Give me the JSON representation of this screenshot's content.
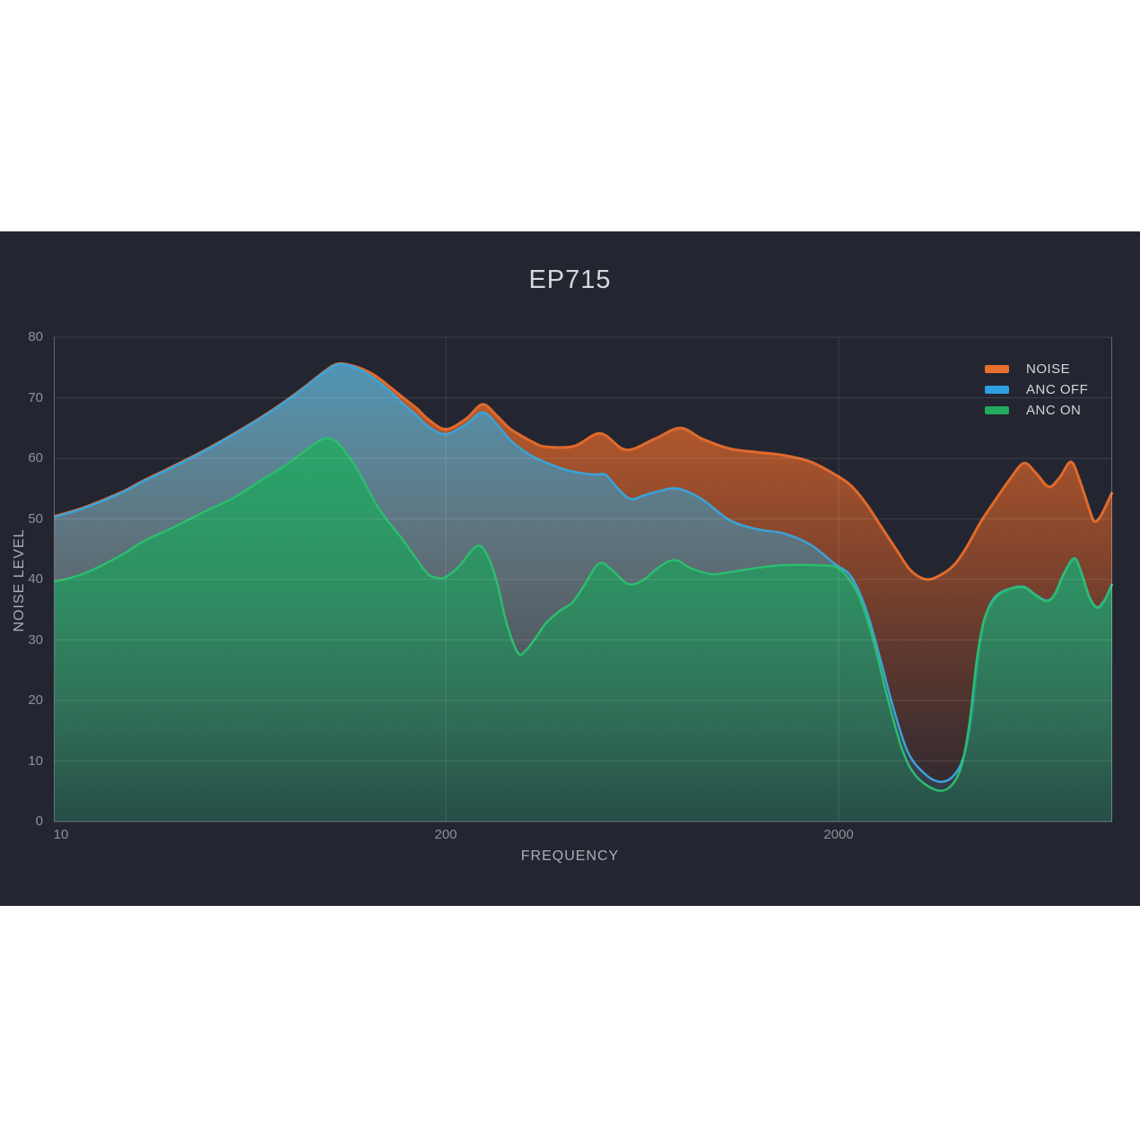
{
  "title": "EP715",
  "colors": {
    "page_bg": "#ffffff",
    "panel_bg": "#232631",
    "grid": "rgba(255,255,255,0.12)",
    "axis_border": "rgba(255,255,255,0.30)",
    "tick_text": "#8d9199",
    "axis_label_text": "#a9adb4",
    "title_text": "#d6d8dc",
    "legend_text": "#d2d4d9"
  },
  "chart_data": {
    "type": "area",
    "title": "EP715",
    "xlabel": "FREQUENCY",
    "ylabel": "NOISE LEVEL",
    "x_scale": "log",
    "x_ticks": [
      10,
      200,
      2000
    ],
    "x_range": [
      9.5,
      10000
    ],
    "y_ticks": [
      0,
      10,
      20,
      30,
      40,
      50,
      60,
      70,
      80
    ],
    "ylim": [
      0,
      80
    ],
    "grid": true,
    "legend_position": "top-right",
    "series": [
      {
        "name": "NOISE",
        "stroke": "#e06a2c",
        "legend_color": "#e8702e",
        "gradient": {
          "top": "rgba(227,108,44,0.92)",
          "mid": "rgba(195,88,40,0.55)",
          "bottom": "rgba(160,75,45,0.05)"
        },
        "points": [
          [
            9.5,
            50.4
          ],
          [
            12,
            51.9
          ],
          [
            16,
            54.4
          ],
          [
            19,
            56.3
          ],
          [
            24,
            58.7
          ],
          [
            30,
            61.1
          ],
          [
            38,
            63.9
          ],
          [
            48,
            66.9
          ],
          [
            58,
            69.6
          ],
          [
            68,
            72.1
          ],
          [
            78,
            74.4
          ],
          [
            86,
            75.6
          ],
          [
            95,
            75.4
          ],
          [
            105,
            74.7
          ],
          [
            116,
            73.6
          ],
          [
            128,
            72.0
          ],
          [
            142,
            70.2
          ],
          [
            160,
            68.2
          ],
          [
            175,
            66.4
          ],
          [
            200,
            64.8
          ],
          [
            225,
            66.5
          ],
          [
            248,
            68.9
          ],
          [
            270,
            67.0
          ],
          [
            290,
            65.0
          ],
          [
            310,
            63.8
          ],
          [
            335,
            62.6
          ],
          [
            360,
            61.9
          ],
          [
            424,
            62.0
          ],
          [
            495,
            64.1
          ],
          [
            575,
            61.4
          ],
          [
            680,
            63.2
          ],
          [
            790,
            65.0
          ],
          [
            900,
            63.2
          ],
          [
            1055,
            61.6
          ],
          [
            1240,
            61.0
          ],
          [
            1450,
            60.5
          ],
          [
            1700,
            59.4
          ],
          [
            1960,
            57.3
          ],
          [
            2150,
            55.5
          ],
          [
            2350,
            52.5
          ],
          [
            2550,
            49.0
          ],
          [
            2800,
            45.0
          ],
          [
            3050,
            41.5
          ],
          [
            3340,
            40.0
          ],
          [
            3650,
            40.8
          ],
          [
            3950,
            42.5
          ],
          [
            4250,
            45.5
          ],
          [
            4600,
            49.5
          ],
          [
            5000,
            53.0
          ],
          [
            5450,
            56.5
          ],
          [
            5920,
            59.2
          ],
          [
            6350,
            57.6
          ],
          [
            6850,
            55.3
          ],
          [
            7300,
            56.8
          ],
          [
            7800,
            59.4
          ],
          [
            8200,
            56.5
          ],
          [
            8700,
            51.5
          ],
          [
            8950,
            49.6
          ],
          [
            9300,
            50.5
          ],
          [
            9940,
            54.4
          ]
        ]
      },
      {
        "name": "ANC OFF",
        "stroke": "#38a3da",
        "legend_color": "#2e9fe0",
        "gradient": {
          "top": "rgba(58,158,205,0.90)",
          "mid": "rgba(58,150,190,0.48)",
          "bottom": "rgba(56,140,180,0.12)"
        },
        "points": [
          [
            9.5,
            50.3
          ],
          [
            12,
            51.8
          ],
          [
            16,
            54.3
          ],
          [
            19,
            56.2
          ],
          [
            24,
            58.6
          ],
          [
            30,
            61.0
          ],
          [
            38,
            63.8
          ],
          [
            48,
            66.8
          ],
          [
            58,
            69.5
          ],
          [
            68,
            72.0
          ],
          [
            78,
            74.3
          ],
          [
            86,
            75.5
          ],
          [
            95,
            75.3
          ],
          [
            105,
            74.4
          ],
          [
            116,
            73.0
          ],
          [
            128,
            71.3
          ],
          [
            142,
            69.2
          ],
          [
            160,
            67.0
          ],
          [
            175,
            65.2
          ],
          [
            200,
            64.0
          ],
          [
            225,
            65.6
          ],
          [
            248,
            67.6
          ],
          [
            270,
            65.6
          ],
          [
            290,
            63.2
          ],
          [
            310,
            61.6
          ],
          [
            335,
            60.2
          ],
          [
            360,
            59.3
          ],
          [
            400,
            58.2
          ],
          [
            440,
            57.6
          ],
          [
            480,
            57.3
          ],
          [
            510,
            57.3
          ],
          [
            545,
            55.2
          ],
          [
            590,
            53.3
          ],
          [
            640,
            53.9
          ],
          [
            700,
            54.6
          ],
          [
            780,
            55.0
          ],
          [
            900,
            53.2
          ],
          [
            1055,
            49.8
          ],
          [
            1240,
            48.3
          ],
          [
            1450,
            47.6
          ],
          [
            1700,
            45.7
          ],
          [
            1960,
            42.5
          ],
          [
            2150,
            40.5
          ],
          [
            2350,
            35.0
          ],
          [
            2550,
            27.0
          ],
          [
            2750,
            19.0
          ],
          [
            3000,
            11.5
          ],
          [
            3300,
            8.0
          ],
          [
            3600,
            6.6
          ],
          [
            3900,
            7.4
          ],
          [
            4150,
            10.5
          ],
          [
            4350,
            17.0
          ],
          [
            4550,
            28.0
          ],
          [
            4750,
            34.2
          ],
          [
            5000,
            37.1
          ],
          [
            5400,
            38.4
          ],
          [
            5920,
            38.8
          ],
          [
            6300,
            37.6
          ],
          [
            6760,
            36.5
          ],
          [
            7100,
            37.6
          ],
          [
            7500,
            41.1
          ],
          [
            7960,
            43.5
          ],
          [
            8300,
            41.1
          ],
          [
            8700,
            37.1
          ],
          [
            9100,
            35.4
          ],
          [
            9500,
            36.6
          ],
          [
            9940,
            39.3
          ]
        ]
      },
      {
        "name": "ANC ON",
        "stroke": "#2bbd6e",
        "legend_color": "#22ab5e",
        "gradient": {
          "top": "rgba(40,178,104,0.95)",
          "mid": "rgba(33,155,94,0.78)",
          "bottom": "rgba(26,125,82,0.35)"
        },
        "points": [
          [
            9.5,
            39.6
          ],
          [
            12,
            41.0
          ],
          [
            16,
            44.0
          ],
          [
            19,
            46.3
          ],
          [
            24,
            48.6
          ],
          [
            30,
            51.0
          ],
          [
            38,
            53.4
          ],
          [
            48,
            56.5
          ],
          [
            58,
            59.0
          ],
          [
            68,
            61.5
          ],
          [
            77,
            63.2
          ],
          [
            85,
            62.8
          ],
          [
            95,
            60.0
          ],
          [
            105,
            56.5
          ],
          [
            116,
            52.5
          ],
          [
            128,
            49.5
          ],
          [
            142,
            46.8
          ],
          [
            160,
            43.2
          ],
          [
            175,
            40.8
          ],
          [
            190,
            40.2
          ],
          [
            200,
            40.4
          ],
          [
            215,
            42.0
          ],
          [
            240,
            45.5
          ],
          [
            255,
            44.0
          ],
          [
            270,
            39.5
          ],
          [
            285,
            33.0
          ],
          [
            305,
            27.9
          ],
          [
            320,
            28.3
          ],
          [
            340,
            30.5
          ],
          [
            360,
            32.8
          ],
          [
            390,
            34.8
          ],
          [
            420,
            36.2
          ],
          [
            450,
            39.0
          ],
          [
            480,
            42.0
          ],
          [
            500,
            42.7
          ],
          [
            520,
            42.0
          ],
          [
            545,
            40.8
          ],
          [
            575,
            39.4
          ],
          [
            600,
            39.2
          ],
          [
            640,
            40.0
          ],
          [
            690,
            41.8
          ],
          [
            740,
            43.0
          ],
          [
            780,
            43.1
          ],
          [
            830,
            42.0
          ],
          [
            880,
            41.4
          ],
          [
            940,
            40.9
          ],
          [
            990,
            40.9
          ],
          [
            1100,
            41.4
          ],
          [
            1240,
            41.9
          ],
          [
            1400,
            42.3
          ],
          [
            1600,
            42.4
          ],
          [
            1800,
            42.3
          ],
          [
            1960,
            42.1
          ],
          [
            2100,
            40.5
          ],
          [
            2260,
            37.0
          ],
          [
            2450,
            30.0
          ],
          [
            2650,
            21.0
          ],
          [
            2900,
            12.0
          ],
          [
            3150,
            7.5
          ],
          [
            3550,
            5.2
          ],
          [
            3850,
            5.8
          ],
          [
            4100,
            9.0
          ],
          [
            4300,
            16.0
          ],
          [
            4500,
            27.0
          ],
          [
            4700,
            33.5
          ],
          [
            5000,
            36.9
          ],
          [
            5400,
            38.3
          ],
          [
            5920,
            38.7
          ],
          [
            6300,
            37.5
          ],
          [
            6760,
            36.4
          ],
          [
            7100,
            37.5
          ],
          [
            7500,
            41.0
          ],
          [
            7960,
            43.4
          ],
          [
            8300,
            41.0
          ],
          [
            8700,
            37.0
          ],
          [
            9100,
            35.3
          ],
          [
            9500,
            36.5
          ],
          [
            9940,
            39.2
          ]
        ]
      }
    ]
  }
}
